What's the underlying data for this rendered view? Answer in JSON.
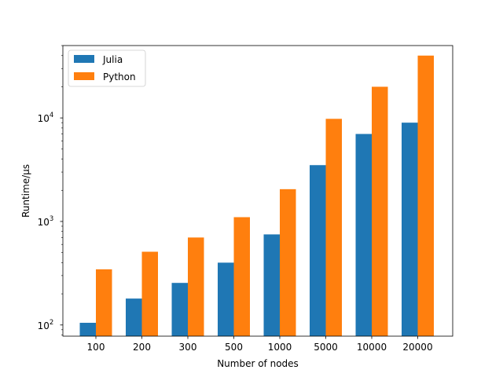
{
  "chart_data": {
    "type": "bar",
    "title": "",
    "xlabel": "Number of nodes",
    "ylabel": "Runtime/µs",
    "yscale": "log",
    "ylim": [
      78,
      50000
    ],
    "yticks": [
      {
        "value": 100,
        "base": "10",
        "exp": "2"
      },
      {
        "value": 1000,
        "base": "10",
        "exp": "3"
      },
      {
        "value": 10000,
        "base": "10",
        "exp": "4"
      }
    ],
    "categories": [
      "100",
      "200",
      "300",
      "500",
      "1000",
      "5000",
      "10000",
      "20000"
    ],
    "series": [
      {
        "name": "Julia",
        "color": "#1f77b4",
        "values": [
          105,
          180,
          255,
          400,
          750,
          3500,
          7000,
          9000
        ]
      },
      {
        "name": "Python",
        "color": "#ff7f0e",
        "values": [
          345,
          510,
          700,
          1100,
          2050,
          9800,
          20000,
          40000
        ]
      }
    ],
    "legend": "top-left",
    "grid": false
  }
}
